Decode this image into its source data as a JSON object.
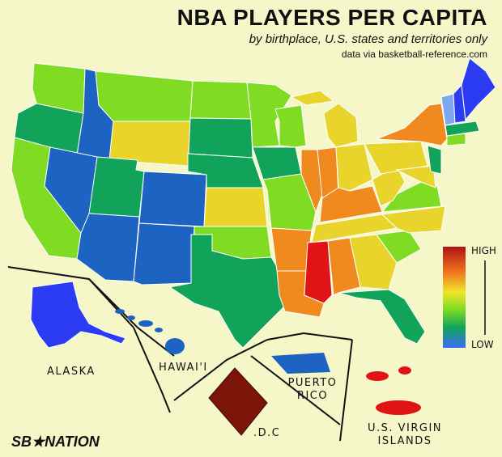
{
  "title": "NBA PLAYERS PER CAPITA",
  "subtitle": "by birthplace, U.S. states and territories only",
  "source": "data via basketball-reference.com",
  "legend": {
    "high_label": "HIGH",
    "low_label": "LOW"
  },
  "inset_labels": {
    "alaska": "ALASKA",
    "hawaii": "HAWAI'I",
    "puerto_rico": "PUERTO RICO",
    "dc": ".D.C",
    "virgin_islands": "U.S. VIRGIN ISLANDS"
  },
  "logo_text": "SB★NATION",
  "colors": {
    "background": "#f6f7c8",
    "high": "#b01414",
    "orange": "#f08a1e",
    "yellow": "#e8d42a",
    "light_green": "#7fdc22",
    "green": "#11a35a",
    "blue": "#1c63c2",
    "low": "#2b3cf2",
    "dc": "#7b1409"
  }
}
